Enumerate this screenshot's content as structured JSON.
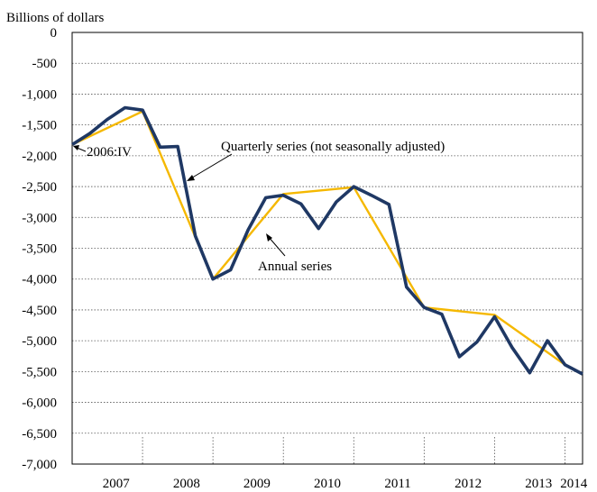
{
  "chart_data": {
    "type": "line",
    "ylabel": "Billions of dollars",
    "ylim": [
      -7000,
      0
    ],
    "yticks": [
      "0",
      "-500",
      "-1,000",
      "-1,500",
      "-2,000",
      "-2,500",
      "-3,000",
      "-3,500",
      "-4,000",
      "-4,500",
      "-5,000",
      "-5,500",
      "-6,000",
      "-6,500",
      "-7,000"
    ],
    "ytick_values": [
      0,
      -500,
      -1000,
      -1500,
      -2000,
      -2500,
      -3000,
      -3500,
      -4000,
      -4500,
      -5000,
      -5500,
      -6000,
      -6500,
      -7000
    ],
    "xticks": [
      "2007",
      "2008",
      "2009",
      "2010",
      "2011",
      "2012",
      "2013",
      "2014"
    ],
    "grid": "horizontal dotted",
    "series": [
      {
        "name": "Quarterly series (not seasonally adjusted)",
        "color": "#1f3864",
        "x": [
          "2006:IV",
          "2007:I",
          "2007:II",
          "2007:III",
          "2007:IV",
          "2008:I",
          "2008:II",
          "2008:III",
          "2008:IV",
          "2009:I",
          "2009:II",
          "2009:III",
          "2009:IV",
          "2010:I",
          "2010:II",
          "2010:III",
          "2010:IV",
          "2011:I",
          "2011:II",
          "2011:III",
          "2011:IV",
          "2012:I",
          "2012:II",
          "2012:III",
          "2012:IV",
          "2013:I",
          "2013:II",
          "2013:III",
          "2013:IV",
          "2014:I"
        ],
        "values": [
          -1820,
          -1640,
          -1410,
          -1220,
          -1260,
          -1860,
          -1850,
          -3300,
          -4000,
          -3850,
          -3200,
          -2680,
          -2640,
          -2780,
          -3180,
          -2750,
          -2500,
          -2640,
          -2790,
          -4130,
          -4460,
          -4570,
          -5260,
          -5020,
          -4610,
          -5110,
          -5520,
          -5000,
          -5390,
          -5540
        ]
      },
      {
        "name": "Annual series",
        "color": "#f5b800",
        "x": [
          "2006:IV",
          "2007:IV",
          "2008:IV",
          "2009:IV",
          "2010:IV",
          "2011:IV",
          "2012:IV",
          "2013:IV"
        ],
        "values": [
          -1820,
          -1280,
          -4000,
          -2620,
          -2510,
          -4460,
          -4580,
          -5390
        ]
      }
    ],
    "annotations": [
      "2006:IV",
      "Quarterly series (not seasonally adjusted)",
      "Annual series"
    ]
  }
}
